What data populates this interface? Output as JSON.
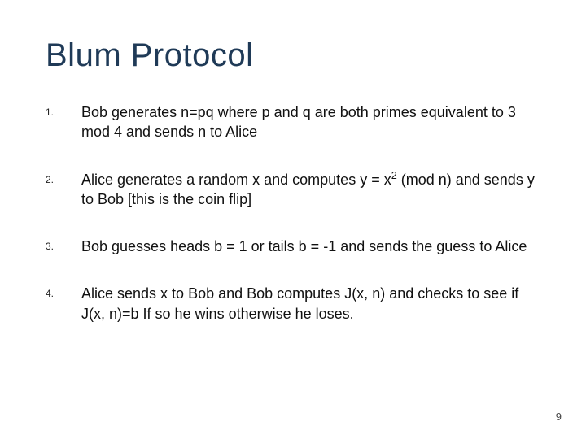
{
  "title": {
    "text": "Blum Protocol",
    "color": "#1f3a57",
    "fontsize": 40
  },
  "body": {
    "color": "#111111",
    "fontsize": 18,
    "numColor": "#222222",
    "numFontsize": 12
  },
  "items": [
    {
      "n": "1.",
      "html": "Bob generates n=pq where p and q are both primes equivalent to 3 mod 4 and sends n to Alice"
    },
    {
      "n": "2.",
      "html": "Alice generates a random x and computes y = x<sup>2</sup> (mod n) and sends y to Bob [this is the coin flip]"
    },
    {
      "n": "3.",
      "html": "Bob guesses heads b = 1 or tails b = -1 and sends the guess to Alice"
    },
    {
      "n": "4.",
      "html": "Alice sends x to Bob and Bob computes J(x, n) and checks to see if J(x, n)=b  If so he wins otherwise he loses."
    }
  ],
  "pageNumber": "9",
  "background": "#ffffff"
}
